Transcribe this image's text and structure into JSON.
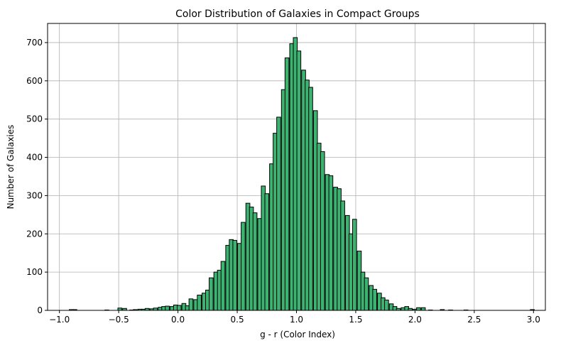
{
  "chart_data": {
    "type": "bar",
    "subtype": "histogram",
    "title": "Color Distribution of Galaxies in Compact Groups",
    "xlabel": "g - r (Color Index)",
    "ylabel": "Number of Galaxies",
    "xlim": [
      -1.1,
      3.1
    ],
    "ylim": [
      0,
      750
    ],
    "xticks": [
      -1.0,
      -0.5,
      0.0,
      0.5,
      1.0,
      1.5,
      2.0,
      2.5,
      3.0
    ],
    "yticks": [
      0,
      100,
      200,
      300,
      400,
      500,
      600,
      700
    ],
    "grid": true,
    "bar_color": "#3cb371",
    "edge_color": "#000000",
    "bin_width": 0.0336,
    "bins": [
      {
        "x": -0.9,
        "count": 2
      },
      {
        "x": -0.87,
        "count": 2
      },
      {
        "x": -0.6,
        "count": 1
      },
      {
        "x": -0.49,
        "count": 6
      },
      {
        "x": -0.45,
        "count": 5
      },
      {
        "x": -0.39,
        "count": 1
      },
      {
        "x": -0.36,
        "count": 2
      },
      {
        "x": -0.32,
        "count": 3
      },
      {
        "x": -0.29,
        "count": 3
      },
      {
        "x": -0.26,
        "count": 5
      },
      {
        "x": -0.22,
        "count": 4
      },
      {
        "x": -0.19,
        "count": 6
      },
      {
        "x": -0.15,
        "count": 8
      },
      {
        "x": -0.12,
        "count": 10
      },
      {
        "x": -0.09,
        "count": 11
      },
      {
        "x": -0.05,
        "count": 10
      },
      {
        "x": -0.02,
        "count": 14
      },
      {
        "x": 0.01,
        "count": 13
      },
      {
        "x": 0.05,
        "count": 18
      },
      {
        "x": 0.08,
        "count": 12
      },
      {
        "x": 0.11,
        "count": 30
      },
      {
        "x": 0.15,
        "count": 28
      },
      {
        "x": 0.18,
        "count": 40
      },
      {
        "x": 0.22,
        "count": 45
      },
      {
        "x": 0.25,
        "count": 53
      },
      {
        "x": 0.28,
        "count": 85
      },
      {
        "x": 0.32,
        "count": 100
      },
      {
        "x": 0.35,
        "count": 105
      },
      {
        "x": 0.38,
        "count": 128
      },
      {
        "x": 0.42,
        "count": 170
      },
      {
        "x": 0.45,
        "count": 185
      },
      {
        "x": 0.48,
        "count": 183
      },
      {
        "x": 0.52,
        "count": 175
      },
      {
        "x": 0.55,
        "count": 230
      },
      {
        "x": 0.59,
        "count": 280
      },
      {
        "x": 0.62,
        "count": 270
      },
      {
        "x": 0.65,
        "count": 255
      },
      {
        "x": 0.69,
        "count": 240
      },
      {
        "x": 0.72,
        "count": 325
      },
      {
        "x": 0.75,
        "count": 305
      },
      {
        "x": 0.79,
        "count": 383
      },
      {
        "x": 0.82,
        "count": 463
      },
      {
        "x": 0.85,
        "count": 505
      },
      {
        "x": 0.89,
        "count": 577
      },
      {
        "x": 0.92,
        "count": 660
      },
      {
        "x": 0.96,
        "count": 697
      },
      {
        "x": 0.99,
        "count": 713
      },
      {
        "x": 1.02,
        "count": 678
      },
      {
        "x": 1.06,
        "count": 628
      },
      {
        "x": 1.09,
        "count": 602
      },
      {
        "x": 1.12,
        "count": 583
      },
      {
        "x": 1.16,
        "count": 522
      },
      {
        "x": 1.19,
        "count": 437
      },
      {
        "x": 1.22,
        "count": 415
      },
      {
        "x": 1.26,
        "count": 355
      },
      {
        "x": 1.29,
        "count": 352
      },
      {
        "x": 1.33,
        "count": 322
      },
      {
        "x": 1.36,
        "count": 318
      },
      {
        "x": 1.39,
        "count": 286
      },
      {
        "x": 1.43,
        "count": 248
      },
      {
        "x": 1.46,
        "count": 200
      },
      {
        "x": 1.49,
        "count": 238
      },
      {
        "x": 1.53,
        "count": 155
      },
      {
        "x": 1.56,
        "count": 100
      },
      {
        "x": 1.59,
        "count": 85
      },
      {
        "x": 1.63,
        "count": 65
      },
      {
        "x": 1.66,
        "count": 55
      },
      {
        "x": 1.7,
        "count": 45
      },
      {
        "x": 1.73,
        "count": 33
      },
      {
        "x": 1.76,
        "count": 27
      },
      {
        "x": 1.8,
        "count": 17
      },
      {
        "x": 1.83,
        "count": 10
      },
      {
        "x": 1.86,
        "count": 5
      },
      {
        "x": 1.9,
        "count": 7
      },
      {
        "x": 1.93,
        "count": 10
      },
      {
        "x": 1.96,
        "count": 5
      },
      {
        "x": 2.0,
        "count": 3
      },
      {
        "x": 2.03,
        "count": 7
      },
      {
        "x": 2.07,
        "count": 7
      },
      {
        "x": 2.13,
        "count": 1
      },
      {
        "x": 2.23,
        "count": 2
      },
      {
        "x": 2.3,
        "count": 1
      },
      {
        "x": 2.43,
        "count": 1
      },
      {
        "x": 2.99,
        "count": 2
      }
    ]
  }
}
